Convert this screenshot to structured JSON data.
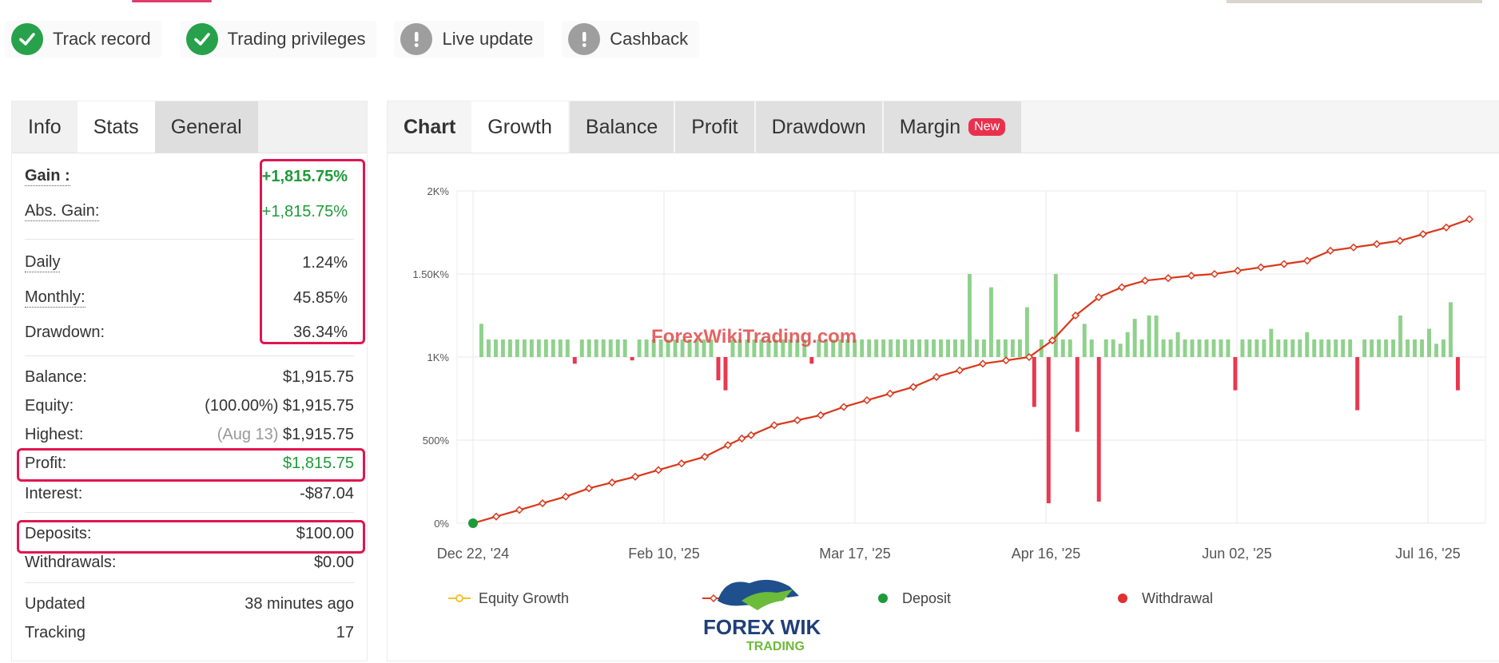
{
  "badges": [
    {
      "label": "Track record",
      "status": "verified",
      "icon": "check-circle-icon"
    },
    {
      "label": "Trading privileges",
      "status": "verified",
      "icon": "check-circle-icon"
    },
    {
      "label": "Live update",
      "status": "pending",
      "icon": "exclamation-circle-icon"
    },
    {
      "label": "Cashback",
      "status": "pending",
      "icon": "exclamation-circle-icon"
    }
  ],
  "left_tabs": [
    "Info",
    "Stats",
    "General"
  ],
  "stats": {
    "gain": {
      "label": "Gain :",
      "value": "+1,815.75%"
    },
    "abs_gain": {
      "label": "Abs. Gain:",
      "value": "+1,815.75%"
    },
    "daily": {
      "label": "Daily",
      "value": "1.24%"
    },
    "monthly": {
      "label": "Monthly:",
      "value": "45.85%"
    },
    "drawdown": {
      "label": "Drawdown:",
      "value": "36.34%"
    },
    "balance": {
      "label": "Balance:",
      "value": "$1,915.75"
    },
    "equity": {
      "label": "Equity:",
      "value_prefix": "(100.00%)",
      "value": "$1,915.75"
    },
    "highest": {
      "label": "Highest:",
      "value_prefix": "(Aug 13)",
      "value": "$1,915.75"
    },
    "profit": {
      "label": "Profit:",
      "value": "$1,815.75"
    },
    "interest": {
      "label": "Interest:",
      "value": "-$87.04"
    },
    "deposits": {
      "label": "Deposits:",
      "value": "$100.00"
    },
    "withdrawals": {
      "label": "Withdrawals:",
      "value": "$0.00"
    },
    "updated": {
      "label": "Updated",
      "value": "38 minutes ago"
    },
    "tracking": {
      "label": "Tracking",
      "value": "17"
    }
  },
  "chart_tabs": {
    "label": "Chart",
    "items": [
      "Growth",
      "Balance",
      "Profit",
      "Drawdown",
      "Margin"
    ],
    "new_badge": "New"
  },
  "watermark": "ForexWikiTrading.com",
  "logo_text": {
    "line1": "FOREX WIKI",
    "line2": "TRADING"
  },
  "colors": {
    "accent_green": "#27a14b",
    "highlight_red": "#e0164f",
    "growth_line": "#d9381e",
    "equity_line": "#f2c12e",
    "bar_positive": "#8fd18c",
    "bar_negative": "#e8384f"
  },
  "chart_data": {
    "type": "line",
    "x_tick_labels": [
      "Dec 22, '24",
      "Feb 10, '25",
      "Mar 17, '25",
      "Apr 16, '25",
      "Jun 02, '25",
      "Jul 16, '25"
    ],
    "y_tick_labels": [
      "0%",
      "500%",
      "1K%",
      "1.50K%",
      "2K%"
    ],
    "ylim": [
      0,
      2000
    ],
    "grid": true,
    "legend_position": "bottom",
    "series": [
      {
        "name": "Equity Growth",
        "marker": "circle-open",
        "color": "#f2c12e"
      },
      {
        "name": "",
        "marker": "diamond",
        "color": "#d9381e",
        "x": [
          0,
          5,
          10,
          15,
          20,
          25,
          30,
          35,
          40,
          45,
          50,
          55,
          58,
          60,
          65,
          70,
          75,
          80,
          85,
          90,
          95,
          100,
          105,
          110,
          115,
          120,
          125,
          130,
          135,
          140,
          145,
          150,
          155,
          160,
          165,
          170,
          175,
          180,
          185,
          190,
          195,
          200,
          205,
          210,
          215
        ],
        "values": [
          0,
          40,
          80,
          120,
          160,
          210,
          245,
          280,
          320,
          360,
          400,
          470,
          510,
          530,
          590,
          620,
          650,
          700,
          740,
          780,
          820,
          880,
          920,
          960,
          980,
          1000,
          1100,
          1250,
          1360,
          1420,
          1460,
          1475,
          1490,
          1500,
          1520,
          1540,
          1560,
          1580,
          1640,
          1660,
          1680,
          1700,
          1740,
          1780,
          1830
        ]
      },
      {
        "name": "Deposit",
        "marker": "dot",
        "color": "#1e9a3a",
        "x": [
          0
        ],
        "values": [
          0
        ]
      },
      {
        "name": "Withdrawal",
        "marker": "dot",
        "color": "#e03030"
      }
    ],
    "daily_bars": {
      "baseline": 1000,
      "values": [
        200,
        0,
        0,
        0,
        0,
        0,
        0,
        0,
        0,
        0,
        0,
        0,
        0,
        -40,
        0,
        0,
        0,
        0,
        0,
        0,
        0,
        -20,
        0,
        0,
        0,
        0,
        0,
        0,
        0,
        0,
        0,
        0,
        0,
        -140,
        -200,
        0,
        0,
        0,
        0,
        0,
        0,
        0,
        0,
        0,
        0,
        0,
        -40,
        0,
        0,
        0,
        0,
        0,
        0,
        0,
        0,
        0,
        0,
        0,
        0,
        0,
        0,
        0,
        0,
        0,
        0,
        0,
        0,
        0,
        500,
        0,
        0,
        420,
        0,
        0,
        0,
        0,
        300,
        -300,
        0,
        -880,
        500,
        0,
        0,
        -450,
        200,
        0,
        -870,
        0,
        0,
        80,
        150,
        230,
        0,
        250,
        250,
        0,
        0,
        150,
        0,
        0,
        0,
        0,
        0,
        0,
        0,
        -200,
        0,
        0,
        0,
        0,
        170,
        0,
        0,
        0,
        0,
        150,
        0,
        0,
        0,
        0,
        0,
        0,
        -320,
        0,
        0,
        0,
        0,
        0,
        250,
        0,
        0,
        0,
        170,
        80,
        0,
        330,
        -200
      ]
    }
  }
}
